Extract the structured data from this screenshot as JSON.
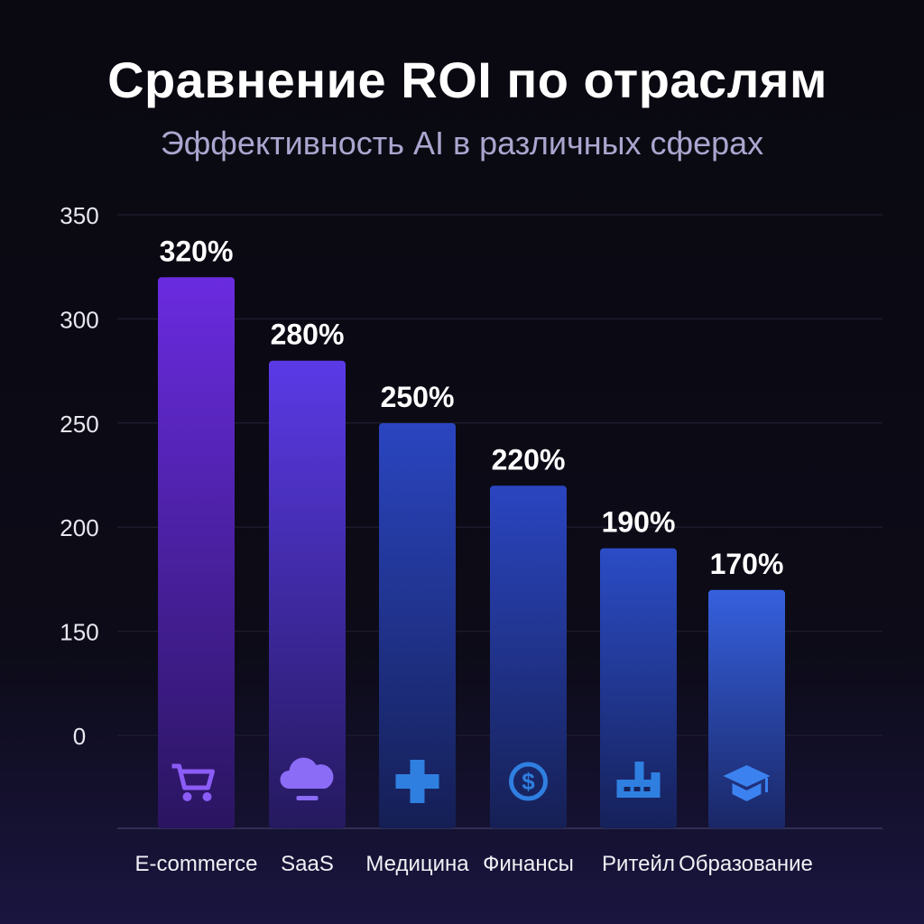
{
  "chart_data": {
    "type": "bar",
    "title": "Сравнение ROI по отраслям",
    "subtitle": "Эффективность AI в различных сферах",
    "xlabel": "",
    "ylabel": "",
    "categories": [
      "E-commerce",
      "SaaS",
      "Медицина",
      "Финансы",
      "Ритейл",
      "Образование"
    ],
    "values": [
      320,
      280,
      250,
      220,
      190,
      170
    ],
    "data_labels": [
      "320%",
      "280%",
      "250%",
      "220%",
      "190%",
      "170%"
    ],
    "icons": [
      "cart-icon",
      "cloud-icon",
      "medical-cross-icon",
      "dollar-coin-icon",
      "factory-icon",
      "graduation-cap-icon"
    ],
    "y_tick_labels": [
      "350",
      "300",
      "250",
      "200",
      "150",
      "0"
    ],
    "ylim": [
      0,
      350
    ],
    "grid": true,
    "colors": {
      "bar_top": [
        "#6a2be0",
        "#5a3ae6",
        "#2a45c0",
        "#2a45c0",
        "#2b4cc6",
        "#3560de"
      ],
      "bar_bottom": [
        "#2a1560",
        "#25195e",
        "#151f55",
        "#162055",
        "#16215a",
        "#1a2766"
      ],
      "icon": [
        "#8b5cf6",
        "#8b6cf6",
        "#2f7fe0",
        "#2f7fe0",
        "#2f7fe0",
        "#3b82f0"
      ]
    }
  }
}
